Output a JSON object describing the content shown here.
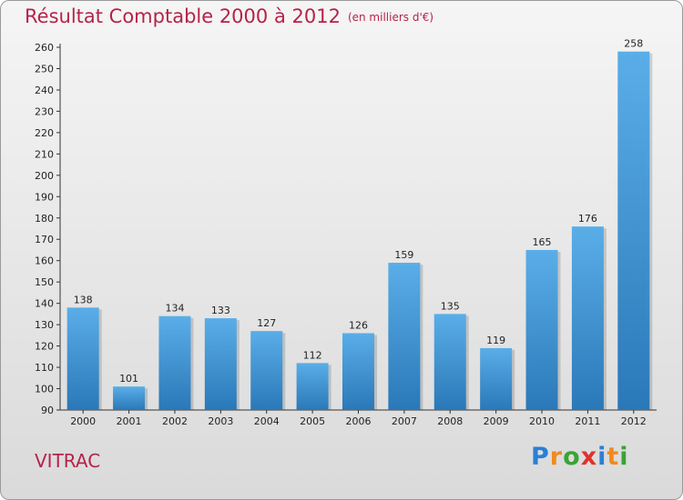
{
  "header": {
    "title": "Résultat Comptable 2000 à 2012",
    "subtitle": "(en milliers d'€)"
  },
  "footer": {
    "commune": "VITRAC",
    "logo_letters": [
      "P",
      "r",
      "o",
      "x",
      "i",
      "t",
      "i"
    ],
    "logo_colors": [
      "#2b7fd4",
      "#f28a1c",
      "#3aa335",
      "#e0322b",
      "#2b7fd4",
      "#f28a1c",
      "#3aa335"
    ]
  },
  "chart_data": {
    "type": "bar",
    "title": "Résultat Comptable 2000 à 2012",
    "subtitle": "(en milliers d'€)",
    "categories": [
      "2000",
      "2001",
      "2002",
      "2003",
      "2004",
      "2005",
      "2006",
      "2007",
      "2008",
      "2009",
      "2010",
      "2011",
      "2012"
    ],
    "values": [
      138,
      101,
      134,
      133,
      127,
      112,
      126,
      159,
      135,
      119,
      165,
      176,
      258
    ],
    "value_labels": [
      "138",
      "101",
      "134",
      "133",
      "127",
      "112",
      "126",
      "159",
      "135",
      "119",
      "165",
      "176",
      "258"
    ],
    "ylim": [
      90,
      260
    ],
    "yticks": [
      90,
      100,
      110,
      120,
      130,
      140,
      150,
      160,
      170,
      180,
      190,
      200,
      210,
      220,
      230,
      240,
      250,
      260
    ],
    "ytick_labels": [
      "90",
      "100",
      "110",
      "120",
      "130",
      "140",
      "150",
      "160",
      "170",
      "180",
      "190",
      "200",
      "210",
      "220",
      "230",
      "240",
      "250",
      "260"
    ],
    "xlabel": "",
    "ylabel": "",
    "grid": false,
    "bar_color_top": "#5aaee8",
    "bar_color_bottom": "#2a78b8"
  }
}
